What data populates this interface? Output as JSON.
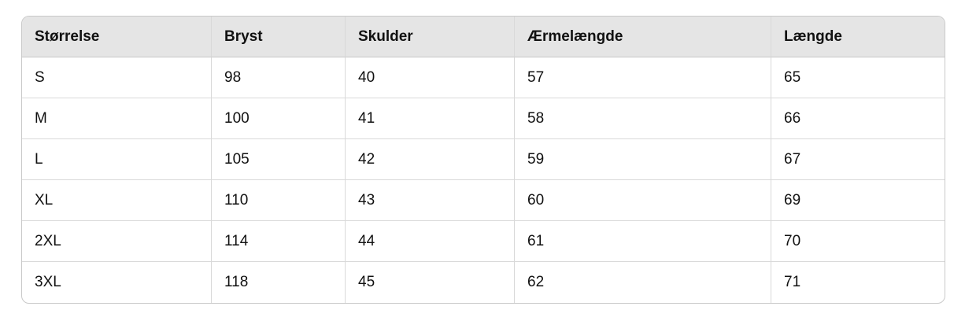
{
  "size_chart": {
    "columns": [
      "Størrelse",
      "Bryst",
      "Skulder",
      "Ærmelængde",
      "Længde"
    ],
    "rows": [
      [
        "S",
        "98",
        "40",
        "57",
        "65"
      ],
      [
        "M",
        "100",
        "41",
        "58",
        "66"
      ],
      [
        "L",
        "105",
        "42",
        "59",
        "67"
      ],
      [
        "XL",
        "110",
        "43",
        "60",
        "69"
      ],
      [
        "2XL",
        "114",
        "44",
        "61",
        "70"
      ],
      [
        "3XL",
        "118",
        "45",
        "62",
        "71"
      ]
    ],
    "colors": {
      "header_bg": "#e5e5e5",
      "border_outer": "#c9c9c9",
      "border_inner": "#d9d9d9",
      "border_header": "#c6c6c6",
      "text": "#111111"
    }
  }
}
